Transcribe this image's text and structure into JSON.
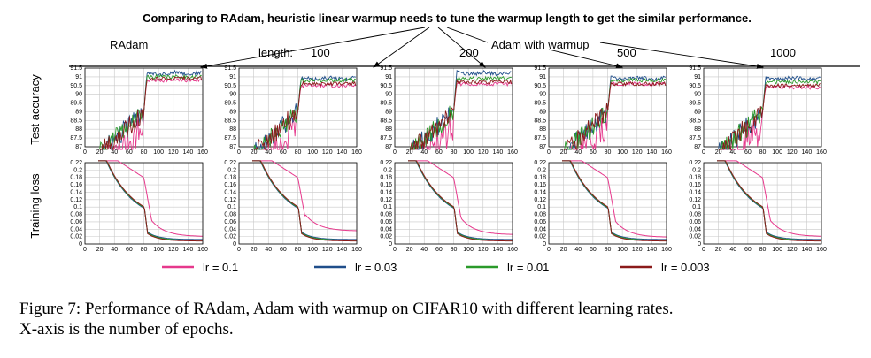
{
  "figure": {
    "title": "Comparing to RAdam, heuristic linear warmup needs to tune the warmup length to get the similar performance.",
    "radam_label": "RAdam",
    "length_label": "length:",
    "adam_warmup_label": "Adam with warmup",
    "panel_labels": [
      "",
      "100",
      "200",
      "500",
      "1000"
    ],
    "row_labels": [
      "Test accuracy",
      "Training loss"
    ]
  },
  "caption": {
    "line1": "Figure 7: Performance of RAdam, Adam with warmup on CIFAR10 with different learning rates.",
    "line2": "X-axis is the number of epochs."
  },
  "colors": {
    "lr_0.1": "#e6388c",
    "lr_0.03": "#1f4e8a",
    "lr_0.01": "#2a9a2a",
    "lr_0.003": "#8b1a1a",
    "grid": "#c8c8c8"
  },
  "chart_data": [
    {
      "type": "line",
      "panels": [
        "RAdam",
        "100",
        "200",
        "500",
        "1000"
      ],
      "top": {
        "ylabel": "Test accuracy",
        "xticks": [
          "0",
          "20",
          "40",
          "60",
          "80",
          "100",
          "120",
          "140",
          "160"
        ],
        "yticks": [
          "87",
          "87.5",
          "88",
          "88.5",
          "89",
          "89.5",
          "90",
          "90.5",
          "91",
          "91.5"
        ],
        "xlim": [
          0,
          160
        ],
        "ylim": [
          87,
          91.5
        ],
        "series": [
          {
            "name": "lr = 0.1",
            "plateau": [
              90.8,
              90.5,
              90.6,
              90.6,
              90.4
            ]
          },
          {
            "name": "lr = 0.03",
            "plateau": [
              91.2,
              90.9,
              91.2,
              90.9,
              90.9
            ]
          },
          {
            "name": "lr = 0.01",
            "plateau": [
              91.0,
              90.8,
              90.9,
              90.8,
              90.7
            ]
          },
          {
            "name": "lr = 0.003",
            "plateau": [
              90.9,
              90.6,
              90.7,
              90.6,
              90.5
            ]
          }
        ]
      },
      "bottom": {
        "ylabel": "Training loss",
        "xticks": [
          "0",
          "20",
          "40",
          "60",
          "80",
          "100",
          "120",
          "140",
          "160"
        ],
        "yticks": [
          "0",
          "0.02",
          "0.04",
          "0.06",
          "0.08",
          "0.1",
          "0.12",
          "0.14",
          "0.16",
          "0.18",
          "0.2",
          "0.22"
        ],
        "xlim": [
          0,
          160
        ],
        "ylim": [
          0,
          0.22
        ],
        "series": [
          {
            "name": "lr = 0.1",
            "final": [
              0.02,
              0.035,
              0.025,
              0.018,
              0.02
            ]
          },
          {
            "name": "lr = 0.03",
            "final": [
              0.012,
              0.012,
              0.012,
              0.012,
              0.012
            ]
          },
          {
            "name": "lr = 0.01",
            "final": [
              0.01,
              0.01,
              0.01,
              0.01,
              0.01
            ]
          },
          {
            "name": "lr = 0.003",
            "final": [
              0.008,
              0.008,
              0.008,
              0.008,
              0.008
            ]
          }
        ]
      },
      "legend": [
        "lr = 0.1",
        "lr = 0.03",
        "lr = 0.01",
        "lr = 0.003"
      ],
      "legend_position": "bottom",
      "grid": true
    }
  ]
}
